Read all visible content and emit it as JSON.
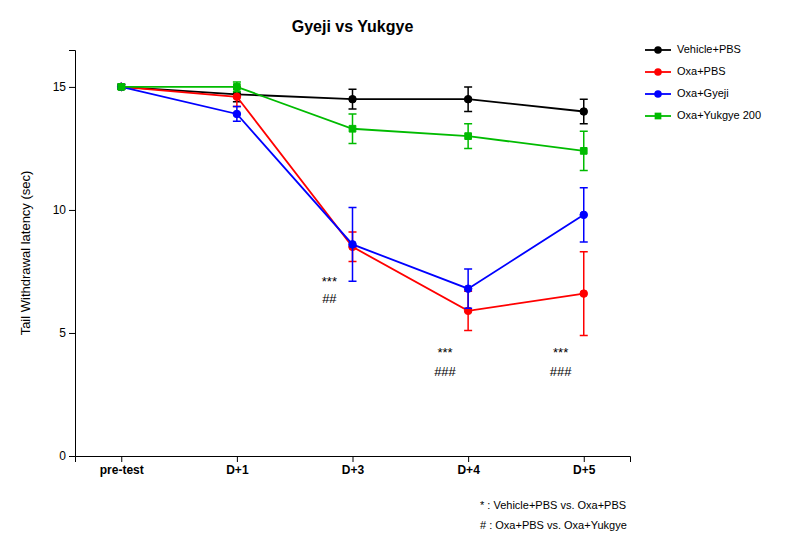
{
  "chart_data": {
    "type": "line",
    "title": "Gyeji vs Yukgye",
    "y_label": "Tail Withdrawal latency (sec)",
    "categories": [
      "pre-test",
      "D+1",
      "D+3",
      "D+4",
      "D+5"
    ],
    "ylim": [
      0,
      16.5
    ],
    "yticks": [
      0,
      5,
      10,
      15
    ],
    "grid": false,
    "legend": "right",
    "series": [
      {
        "name": "Vehicle+PBS",
        "color": "#000000",
        "marker": "circle",
        "values": [
          15.0,
          14.7,
          14.5,
          14.5,
          14.0
        ],
        "errors": [
          0.1,
          0.3,
          0.4,
          0.5,
          0.5
        ]
      },
      {
        "name": "Oxa+PBS",
        "color": "#FF0000",
        "marker": "circle",
        "values": [
          15.0,
          14.6,
          8.5,
          5.9,
          6.6
        ],
        "errors": [
          0.1,
          0.4,
          0.6,
          0.8,
          1.7
        ]
      },
      {
        "name": "Oxa+Gyeji",
        "color": "#0000FF",
        "marker": "circle",
        "values": [
          15.0,
          13.9,
          8.6,
          6.8,
          9.8
        ],
        "errors": [
          0.1,
          0.3,
          1.5,
          0.8,
          1.1
        ]
      },
      {
        "name": "Oxa+Yukgye 200",
        "color": "#00BB00",
        "marker": "square",
        "values": [
          15.0,
          15.0,
          13.3,
          13.0,
          12.4
        ],
        "errors": [
          0.1,
          0.2,
          0.6,
          0.5,
          0.8
        ]
      }
    ],
    "annotations": [
      {
        "text": "***",
        "x": "D+3",
        "y": 7.3
      },
      {
        "text": "##",
        "x": "D+3",
        "y": 6.6
      },
      {
        "text": "***",
        "x": "D+4",
        "y": 4.4
      },
      {
        "text": "###",
        "x": "D+4",
        "y": 3.65
      },
      {
        "text": "***",
        "x": "D+5",
        "y": 4.4
      },
      {
        "text": "###",
        "x": "D+5",
        "y": 3.65
      }
    ],
    "footnotes": [
      "* : Vehicle+PBS vs. Oxa+PBS",
      "# : Oxa+PBS vs. Oxa+Yukgye"
    ]
  }
}
